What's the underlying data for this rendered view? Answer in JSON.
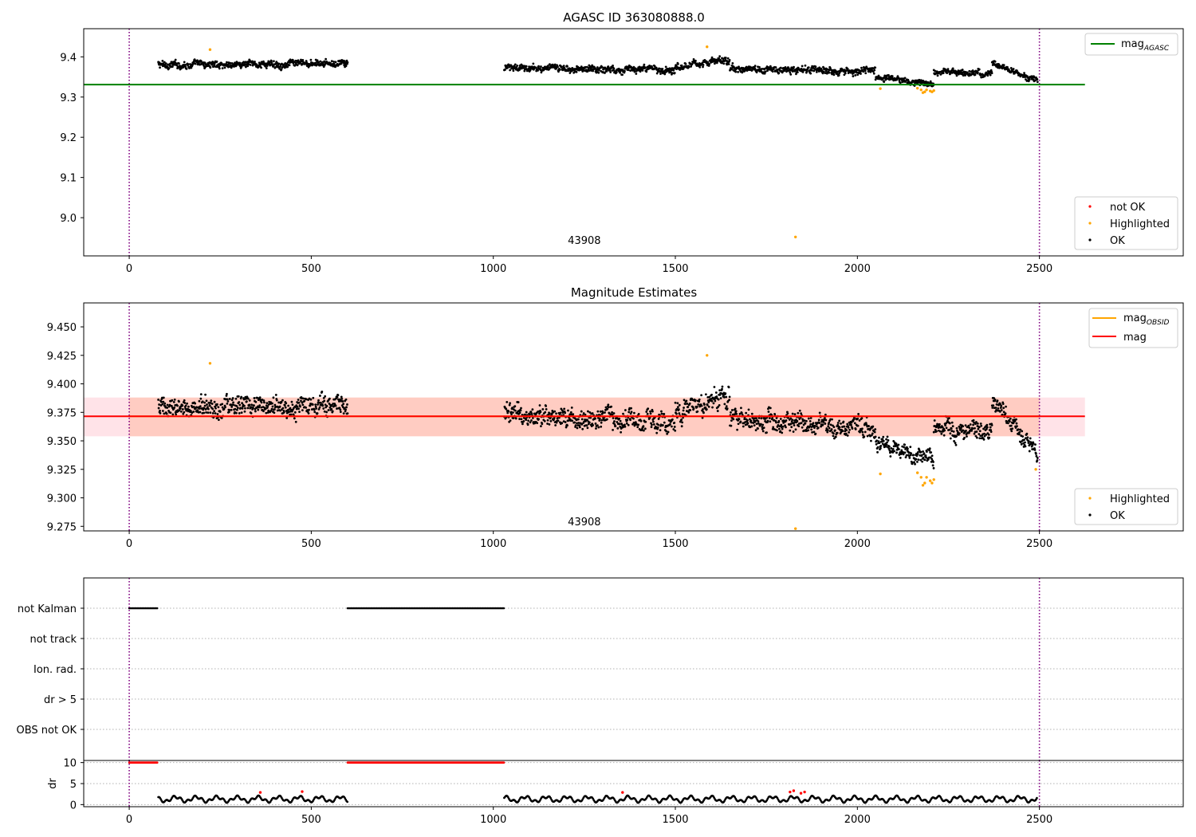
{
  "chart_data": [
    {
      "type": "scatter",
      "title": "AGASC ID 363080888.0",
      "xlim": [
        -125,
        2895
      ],
      "ylim": [
        8.905,
        9.47
      ],
      "xticks": [
        0,
        500,
        1000,
        1500,
        2000,
        2500
      ],
      "xtick_labels": [
        "0",
        "500",
        "1000",
        "1500",
        "2000",
        "2500"
      ],
      "yticks": [
        9.0,
        9.1,
        9.2,
        9.3,
        9.4
      ],
      "ytick_labels": [
        "9.0",
        "9.1",
        "9.2",
        "9.3",
        "9.4"
      ],
      "vlines": [
        0,
        2500
      ],
      "vline_color": "#800080",
      "annotation": {
        "text": "43908",
        "x": 1250,
        "y": 8.935
      },
      "hlines": [
        {
          "name": "mag",
          "subscript": "AGASC",
          "y": 9.331,
          "x_range": [
            -125,
            2625
          ],
          "color": "#008000"
        }
      ],
      "legend_lines": {
        "position": "top-right"
      },
      "legend_points": {
        "position": "bottom-right",
        "entries": [
          {
            "name": "not OK",
            "color": "#ff0000"
          },
          {
            "name": "Highlighted",
            "color": "#ffa500"
          },
          {
            "name": "OK",
            "color": "#000000"
          }
        ]
      },
      "segments": [
        {
          "x_start": 80,
          "x_end": 600,
          "y_start": 9.38,
          "y_end": 9.383,
          "spread": 0.011,
          "color": "#000000"
        },
        {
          "x_start": 1030,
          "x_end": 1500,
          "y_start": 9.372,
          "y_end": 9.368,
          "spread": 0.011,
          "color": "#000000"
        },
        {
          "x_start": 1500,
          "x_end": 1650,
          "y_start": 9.378,
          "y_end": 9.392,
          "spread": 0.012,
          "color": "#000000"
        },
        {
          "x_start": 1650,
          "x_end": 2050,
          "y_start": 9.37,
          "y_end": 9.364,
          "spread": 0.011,
          "color": "#000000"
        },
        {
          "x_start": 2050,
          "x_end": 2210,
          "y_start": 9.35,
          "y_end": 9.332,
          "spread": 0.009,
          "color": "#000000"
        },
        {
          "x_start": 2210,
          "x_end": 2370,
          "y_start": 9.362,
          "y_end": 9.358,
          "spread": 0.01,
          "color": "#000000"
        },
        {
          "x_start": 2370,
          "x_end": 2495,
          "y_start": 9.385,
          "y_end": 9.34,
          "spread": 0.01,
          "color": "#000000"
        }
      ],
      "points": [
        {
          "x": 222,
          "y": 9.418,
          "color": "#ffa500"
        },
        {
          "x": 1587,
          "y": 9.425,
          "color": "#ffa500"
        },
        {
          "x": 1830,
          "y": 8.952,
          "color": "#ffa500"
        },
        {
          "x": 2063,
          "y": 9.321,
          "color": "#ffa500"
        },
        {
          "x": 2165,
          "y": 9.322,
          "color": "#ffa500"
        },
        {
          "x": 2175,
          "y": 9.318,
          "color": "#ffa500"
        },
        {
          "x": 2180,
          "y": 9.311,
          "color": "#ffa500"
        },
        {
          "x": 2185,
          "y": 9.313,
          "color": "#ffa500"
        },
        {
          "x": 2190,
          "y": 9.318,
          "color": "#ffa500"
        },
        {
          "x": 2200,
          "y": 9.315,
          "color": "#ffa500"
        },
        {
          "x": 2205,
          "y": 9.313,
          "color": "#ffa500"
        },
        {
          "x": 2210,
          "y": 9.316,
          "color": "#ffa500"
        }
      ]
    },
    {
      "type": "scatter",
      "title": "Magnitude Estimates",
      "xlim": [
        -125,
        2895
      ],
      "ylim": [
        9.271,
        9.471
      ],
      "xticks": [
        0,
        500,
        1000,
        1500,
        2000,
        2500
      ],
      "xtick_labels": [
        "0",
        "500",
        "1000",
        "1500",
        "2000",
        "2500"
      ],
      "yticks": [
        9.275,
        9.3,
        9.325,
        9.35,
        9.375,
        9.4,
        9.425,
        9.45
      ],
      "ytick_labels": [
        "9.275",
        "9.300",
        "9.325",
        "9.350",
        "9.375",
        "9.400",
        "9.425",
        "9.450"
      ],
      "vlines": [
        0,
        2500
      ],
      "vline_color": "#800080",
      "annotation": {
        "text": "43908",
        "x": 1250,
        "y": 9.276
      },
      "bands": [
        {
          "x_range": [
            -125,
            2625
          ],
          "y_low": 9.354,
          "y_high": 9.388,
          "color": "#ffc0cb",
          "opacity": 0.45
        },
        {
          "x_range": [
            0,
            2500
          ],
          "y_low": 9.354,
          "y_high": 9.388,
          "color": "#ffa07a",
          "opacity": 0.35
        }
      ],
      "hlines": [
        {
          "name": "mag",
          "subscript": "OBSID",
          "y": 9.3715,
          "x_range": [
            0,
            2500
          ],
          "color": "#ffa500"
        },
        {
          "name": "mag",
          "subscript": "",
          "y": 9.3715,
          "x_range": [
            -125,
            2625
          ],
          "color": "#ff0000"
        }
      ],
      "legend_lines": {
        "position": "top-right"
      },
      "legend_points": {
        "position": "bottom-right",
        "entries": [
          {
            "name": "Highlighted",
            "color": "#ffa500"
          },
          {
            "name": "OK",
            "color": "#000000"
          }
        ]
      },
      "segments": [
        {
          "x_start": 80,
          "x_end": 600,
          "y_start": 9.379,
          "y_end": 9.383,
          "spread": 0.011,
          "color": "#000000"
        },
        {
          "x_start": 1030,
          "x_end": 1500,
          "y_start": 9.372,
          "y_end": 9.366,
          "spread": 0.011,
          "color": "#000000"
        },
        {
          "x_start": 1500,
          "x_end": 1650,
          "y_start": 9.377,
          "y_end": 9.39,
          "spread": 0.012,
          "color": "#000000"
        },
        {
          "x_start": 1650,
          "x_end": 2050,
          "y_start": 9.37,
          "y_end": 9.362,
          "spread": 0.011,
          "color": "#000000"
        },
        {
          "x_start": 2050,
          "x_end": 2210,
          "y_start": 9.35,
          "y_end": 9.333,
          "spread": 0.009,
          "color": "#000000"
        },
        {
          "x_start": 2210,
          "x_end": 2370,
          "y_start": 9.362,
          "y_end": 9.357,
          "spread": 0.01,
          "color": "#000000"
        },
        {
          "x_start": 2370,
          "x_end": 2495,
          "y_start": 9.386,
          "y_end": 9.338,
          "spread": 0.01,
          "color": "#000000"
        }
      ],
      "points": [
        {
          "x": 222,
          "y": 9.418,
          "color": "#ffa500"
        },
        {
          "x": 1587,
          "y": 9.425,
          "color": "#ffa500"
        },
        {
          "x": 1830,
          "y": 9.273,
          "color": "#ffa500"
        },
        {
          "x": 2063,
          "y": 9.321,
          "color": "#ffa500"
        },
        {
          "x": 2165,
          "y": 9.322,
          "color": "#ffa500"
        },
        {
          "x": 2175,
          "y": 9.318,
          "color": "#ffa500"
        },
        {
          "x": 2180,
          "y": 9.311,
          "color": "#ffa500"
        },
        {
          "x": 2185,
          "y": 9.313,
          "color": "#ffa500"
        },
        {
          "x": 2190,
          "y": 9.318,
          "color": "#ffa500"
        },
        {
          "x": 2200,
          "y": 9.315,
          "color": "#ffa500"
        },
        {
          "x": 2205,
          "y": 9.313,
          "color": "#ffa500"
        },
        {
          "x": 2210,
          "y": 9.316,
          "color": "#ffa500"
        },
        {
          "x": 2490,
          "y": 9.325,
          "color": "#ffa500"
        }
      ]
    },
    {
      "type": "scatter",
      "title": "",
      "xlim": [
        -125,
        2895
      ],
      "categories": [
        "not Kalman",
        "not track",
        "Ion. rad.",
        "dr > 5",
        "OBS not OK"
      ],
      "vlines": [
        0,
        2500
      ],
      "vline_color": "#800080",
      "flag_runs": [
        {
          "category": "not Kalman",
          "x_start": 0,
          "x_end": 78
        },
        {
          "category": "not Kalman",
          "x_start": 600,
          "x_end": 1030
        }
      ]
    },
    {
      "type": "scatter",
      "title": "",
      "ylabel": "dr",
      "xlim": [
        -125,
        2895
      ],
      "ylim": [
        -0.5,
        10.5
      ],
      "xticks": [
        0,
        500,
        1000,
        1500,
        2000,
        2500
      ],
      "xtick_labels": [
        "0",
        "500",
        "1000",
        "1500",
        "2000",
        "2500"
      ],
      "yticks": [
        0,
        5,
        10
      ],
      "ytick_labels": [
        "0",
        "5",
        "10"
      ],
      "vlines": [
        0,
        2500
      ],
      "vline_color": "#800080",
      "segments": [
        {
          "x_start": 0,
          "x_end": 78,
          "y_start": 10,
          "y_end": 10,
          "spread": 0,
          "color": "#ff0000"
        },
        {
          "x_start": 600,
          "x_end": 1030,
          "y_start": 10,
          "y_end": 10,
          "spread": 0,
          "color": "#ff0000"
        },
        {
          "x_start": 80,
          "x_end": 600,
          "y_start": 1.3,
          "y_end": 1.3,
          "spread": 1.1,
          "color": "#000000"
        },
        {
          "x_start": 1030,
          "x_end": 2495,
          "y_start": 1.3,
          "y_end": 1.3,
          "spread": 1.1,
          "color": "#000000"
        }
      ],
      "points": [
        {
          "x": 360,
          "y": 2.9,
          "color": "#ff0000"
        },
        {
          "x": 475,
          "y": 3.1,
          "color": "#ff0000"
        },
        {
          "x": 1355,
          "y": 2.9,
          "color": "#ff0000"
        },
        {
          "x": 1815,
          "y": 3.0,
          "color": "#ff0000"
        },
        {
          "x": 1825,
          "y": 3.3,
          "color": "#ff0000"
        },
        {
          "x": 1845,
          "y": 2.7,
          "color": "#ff0000"
        },
        {
          "x": 1855,
          "y": 3.0,
          "color": "#ff0000"
        }
      ]
    }
  ]
}
